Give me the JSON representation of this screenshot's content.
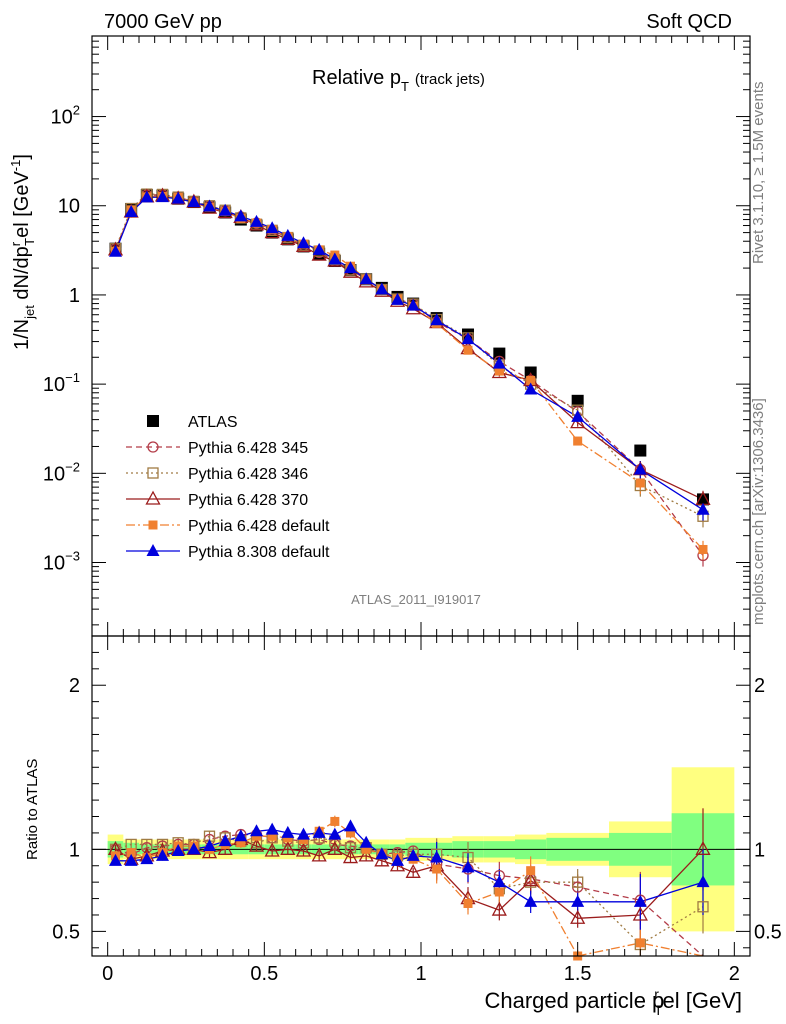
{
  "header": {
    "left": "7000 GeV pp",
    "right": "Soft QCD"
  },
  "side_labels": {
    "rivet": "Rivet 3.1.10, ≥ 1.5M events",
    "mcplots": "mcplots.cern.ch [arXiv:1306.3436]"
  },
  "chart_data": [
    {
      "type": "scatter",
      "panel": "main",
      "title": "Relative p",
      "title_sub": "T",
      "title_suffix": "(track jets)",
      "analysis_tag": "ATLAS_2011_I919017",
      "ylabel": "1/N",
      "ylabel_parts": {
        "a": "1/N",
        "a_sub": "jet",
        "b": " dN/dp",
        "b_sup": "r",
        "b_sub": "T",
        "c": "el [GeV",
        "c_sup": "-1",
        "d": "]"
      },
      "yscale": "log",
      "ylim": [
        0.00015,
        800
      ],
      "xlim": [
        -0.05,
        2.05
      ],
      "ytick_labels": [
        "10^-3",
        "10^-2",
        "10^-1",
        "1",
        "10",
        "10^2"
      ],
      "legend_position": "center-left",
      "x": [
        0.025,
        0.075,
        0.125,
        0.175,
        0.225,
        0.275,
        0.325,
        0.375,
        0.425,
        0.475,
        0.525,
        0.575,
        0.625,
        0.675,
        0.725,
        0.775,
        0.825,
        0.875,
        0.925,
        0.975,
        1.05,
        1.15,
        1.25,
        1.35,
        1.5,
        1.7,
        1.9
      ],
      "series": [
        {
          "name": "ATLAS",
          "color": "#000000",
          "marker": "square-filled",
          "line": "none",
          "values": [
            3.3,
            9.2,
            13.2,
            13.0,
            12.0,
            11.0,
            9.6,
            8.4,
            7.0,
            6.0,
            5.0,
            4.2,
            3.5,
            2.9,
            2.4,
            1.9,
            1.5,
            1.2,
            0.95,
            0.8,
            0.55,
            0.36,
            0.22,
            0.135,
            0.065,
            0.018,
            0.0051
          ]
        },
        {
          "name": "Pythia 6.428 345",
          "color": "#b33c48",
          "marker": "circle-open",
          "line": "dashed",
          "values": [
            3.3,
            8.5,
            13.2,
            13.3,
            12.4,
            11.2,
            9.9,
            8.8,
            7.5,
            6.4,
            5.3,
            4.4,
            3.6,
            3.0,
            2.4,
            1.9,
            1.5,
            1.15,
            0.9,
            0.79,
            0.5,
            0.32,
            0.18,
            0.11,
            0.049,
            0.011,
            0.0012
          ]
        },
        {
          "name": "Pythia 6.428 346",
          "color": "#a07b43",
          "marker": "square-open",
          "line": "dotted",
          "values": [
            3.3,
            9.3,
            13.5,
            13.4,
            12.5,
            11.2,
            10.0,
            8.9,
            7.3,
            6.2,
            5.3,
            4.4,
            3.6,
            3.1,
            2.5,
            1.9,
            1.5,
            1.15,
            0.9,
            0.79,
            0.53,
            0.33,
            0.16,
            0.1,
            0.051,
            0.0073,
            0.0033
          ]
        },
        {
          "name": "Pythia 6.428 370",
          "color": "#9b1c1c",
          "marker": "triangle-open",
          "line": "solid",
          "values": [
            3.2,
            8.5,
            12.6,
            12.9,
            12.0,
            11.0,
            9.4,
            8.4,
            7.4,
            6.1,
            5.0,
            4.2,
            3.5,
            2.8,
            2.4,
            1.8,
            1.4,
            1.1,
            0.85,
            0.7,
            0.49,
            0.25,
            0.135,
            0.11,
            0.037,
            0.011,
            0.0051
          ]
        },
        {
          "name": "Pythia 6.428 default",
          "color": "#f08030",
          "marker": "square-filled-small",
          "line": "dashdot",
          "values": [
            3.1,
            9.0,
            12.6,
            12.7,
            12.4,
            11.0,
            9.6,
            8.6,
            7.2,
            6.4,
            5.4,
            4.5,
            3.7,
            3.2,
            2.8,
            2.1,
            1.5,
            1.15,
            0.9,
            0.75,
            0.48,
            0.24,
            0.14,
            0.11,
            0.023,
            0.0078,
            0.0014
          ]
        },
        {
          "name": "Pythia 8.308 default",
          "color": "#0000dd",
          "marker": "triangle-filled",
          "line": "solid",
          "values": [
            3.05,
            8.5,
            12.4,
            12.5,
            12.0,
            11.0,
            9.8,
            8.8,
            7.6,
            6.6,
            5.6,
            4.6,
            3.8,
            3.2,
            2.5,
            2.0,
            1.5,
            1.15,
            0.88,
            0.76,
            0.52,
            0.32,
            0.17,
            0.087,
            0.043,
            0.011,
            0.0039
          ]
        }
      ]
    },
    {
      "type": "scatter",
      "panel": "ratio",
      "ylabel": "Ratio to ATLAS",
      "xlabel": "Charged particle p",
      "xlabel_parts": {
        "a": "Charged particle p",
        "a_sup": "r",
        "a_sub": "T",
        "b": "el [GeV]"
      },
      "xlim": [
        -0.05,
        2.05
      ],
      "ylim": [
        0.35,
        2.3
      ],
      "xtick_labels": [
        "0",
        "0.5",
        "1",
        "1.5",
        "2"
      ],
      "ytick_labels": [
        "0.5",
        "1",
        "2"
      ],
      "band_edges": [
        0,
        0.05,
        0.1,
        0.15,
        0.2,
        0.25,
        0.3,
        0.35,
        0.4,
        0.45,
        0.5,
        0.55,
        0.6,
        0.65,
        0.7,
        0.75,
        0.8,
        0.85,
        0.9,
        0.95,
        1.0,
        1.1,
        1.2,
        1.3,
        1.4,
        1.6,
        1.8,
        2.0
      ],
      "band_inner": [
        0.05,
        0.04,
        0.03,
        0.03,
        0.03,
        0.03,
        0.03,
        0.03,
        0.03,
        0.03,
        0.03,
        0.03,
        0.03,
        0.03,
        0.03,
        0.03,
        0.03,
        0.03,
        0.03,
        0.04,
        0.04,
        0.05,
        0.05,
        0.06,
        0.07,
        0.1,
        0.22
      ],
      "band_outer": [
        0.09,
        0.06,
        0.06,
        0.06,
        0.06,
        0.06,
        0.06,
        0.06,
        0.06,
        0.06,
        0.06,
        0.06,
        0.06,
        0.06,
        0.06,
        0.06,
        0.06,
        0.06,
        0.06,
        0.07,
        0.07,
        0.08,
        0.08,
        0.09,
        0.1,
        0.17,
        0.5
      ],
      "x": [
        0.025,
        0.075,
        0.125,
        0.175,
        0.225,
        0.275,
        0.325,
        0.375,
        0.425,
        0.475,
        0.525,
        0.575,
        0.625,
        0.675,
        0.725,
        0.775,
        0.825,
        0.875,
        0.925,
        0.975,
        1.05,
        1.15,
        1.25,
        1.35,
        1.5,
        1.7,
        1.9
      ],
      "series": [
        {
          "name": "Pythia 6.428 345",
          "color": "#b33c48",
          "marker": "circle-open",
          "line": "dashed",
          "values": [
            1.0,
            0.97,
            1.01,
            1.02,
            1.03,
            1.03,
            1.06,
            1.08,
            1.09,
            1.09,
            1.07,
            1.06,
            1.05,
            1.06,
            1.03,
            1.02,
            1.01,
            0.97,
            0.98,
            0.99,
            0.91,
            0.88,
            0.84,
            0.82,
            0.77,
            0.69,
            0.32
          ]
        },
        {
          "name": "Pythia 6.428 346",
          "color": "#a07b43",
          "marker": "square-open",
          "line": "dotted",
          "values": [
            1.0,
            1.03,
            1.03,
            1.03,
            1.04,
            1.03,
            1.08,
            1.07,
            1.05,
            1.04,
            1.07,
            1.05,
            1.04,
            1.07,
            1.05,
            1.01,
            1.01,
            0.97,
            0.96,
            0.97,
            0.97,
            0.95,
            0.76,
            0.8,
            0.8,
            0.42,
            0.65
          ]
        },
        {
          "name": "Pythia 6.428 370",
          "color": "#9b1c1c",
          "marker": "triangle-open",
          "line": "solid",
          "values": [
            1.0,
            0.94,
            0.96,
            0.99,
            1.0,
            1.0,
            0.98,
            1.0,
            1.06,
            1.02,
            0.99,
            1.0,
            0.99,
            0.96,
            1.0,
            0.95,
            0.96,
            0.93,
            0.9,
            0.86,
            0.9,
            0.7,
            0.63,
            0.81,
            0.58,
            0.6,
            1.0
          ]
        },
        {
          "name": "Pythia 6.428 default",
          "color": "#f08030",
          "marker": "square-filled-small",
          "line": "dashdot",
          "values": [
            0.96,
            0.98,
            0.95,
            0.98,
            1.02,
            1.02,
            1.0,
            1.03,
            1.04,
            1.08,
            1.08,
            1.07,
            1.06,
            1.11,
            1.17,
            1.1,
            1.0,
            0.97,
            0.95,
            0.94,
            0.88,
            0.67,
            0.74,
            0.87,
            0.35,
            0.43,
            0.27
          ]
        },
        {
          "name": "Pythia 8.308 default",
          "color": "#0000dd",
          "marker": "triangle-filled",
          "line": "solid",
          "values": [
            0.93,
            0.93,
            0.94,
            0.96,
            0.99,
            1.0,
            1.02,
            1.05,
            1.08,
            1.11,
            1.12,
            1.1,
            1.09,
            1.1,
            1.09,
            1.14,
            1.04,
            0.97,
            0.93,
            0.96,
            0.95,
            0.89,
            0.8,
            0.68,
            0.68,
            0.68,
            0.8
          ]
        }
      ]
    }
  ]
}
